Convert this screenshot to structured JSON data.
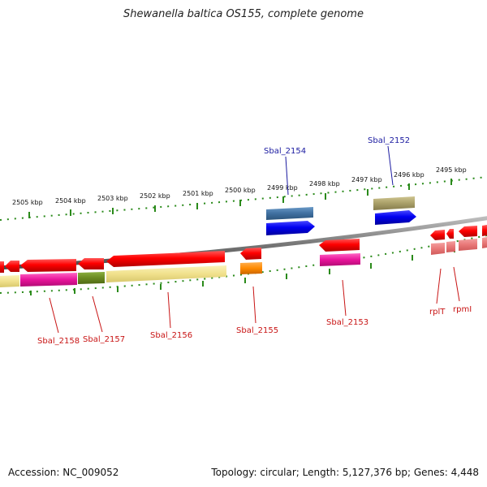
{
  "title": "Shewanella baltica OS155, complete genome",
  "footer": {
    "accession": "Accession: NC_009052",
    "summary": "Topology: circular; Length: 5,127,376 bp; Genes: 4,448"
  },
  "ticks": [
    "2505 kbp",
    "2504 kbp",
    "2503 kbp",
    "2502 kbp",
    "2501 kbp",
    "2500 kbp",
    "2499 kbp",
    "2498 kbp",
    "2497 kbp",
    "2496 kbp",
    "2495 kbp"
  ],
  "gene_labels": {
    "top": [
      "Sbal_2154",
      "Sbal_2152"
    ],
    "bottom": [
      "Sbal_2158",
      "Sbal_2157",
      "Sbal_2156",
      "Sbal_2155",
      "Sbal_2153",
      "rplT",
      "rpmI"
    ]
  },
  "colors": {
    "forward_label": "#1a1aa0",
    "reverse_label": "#c81414",
    "tick": "#2a8a1a",
    "backbone": "#7a7a7a"
  }
}
